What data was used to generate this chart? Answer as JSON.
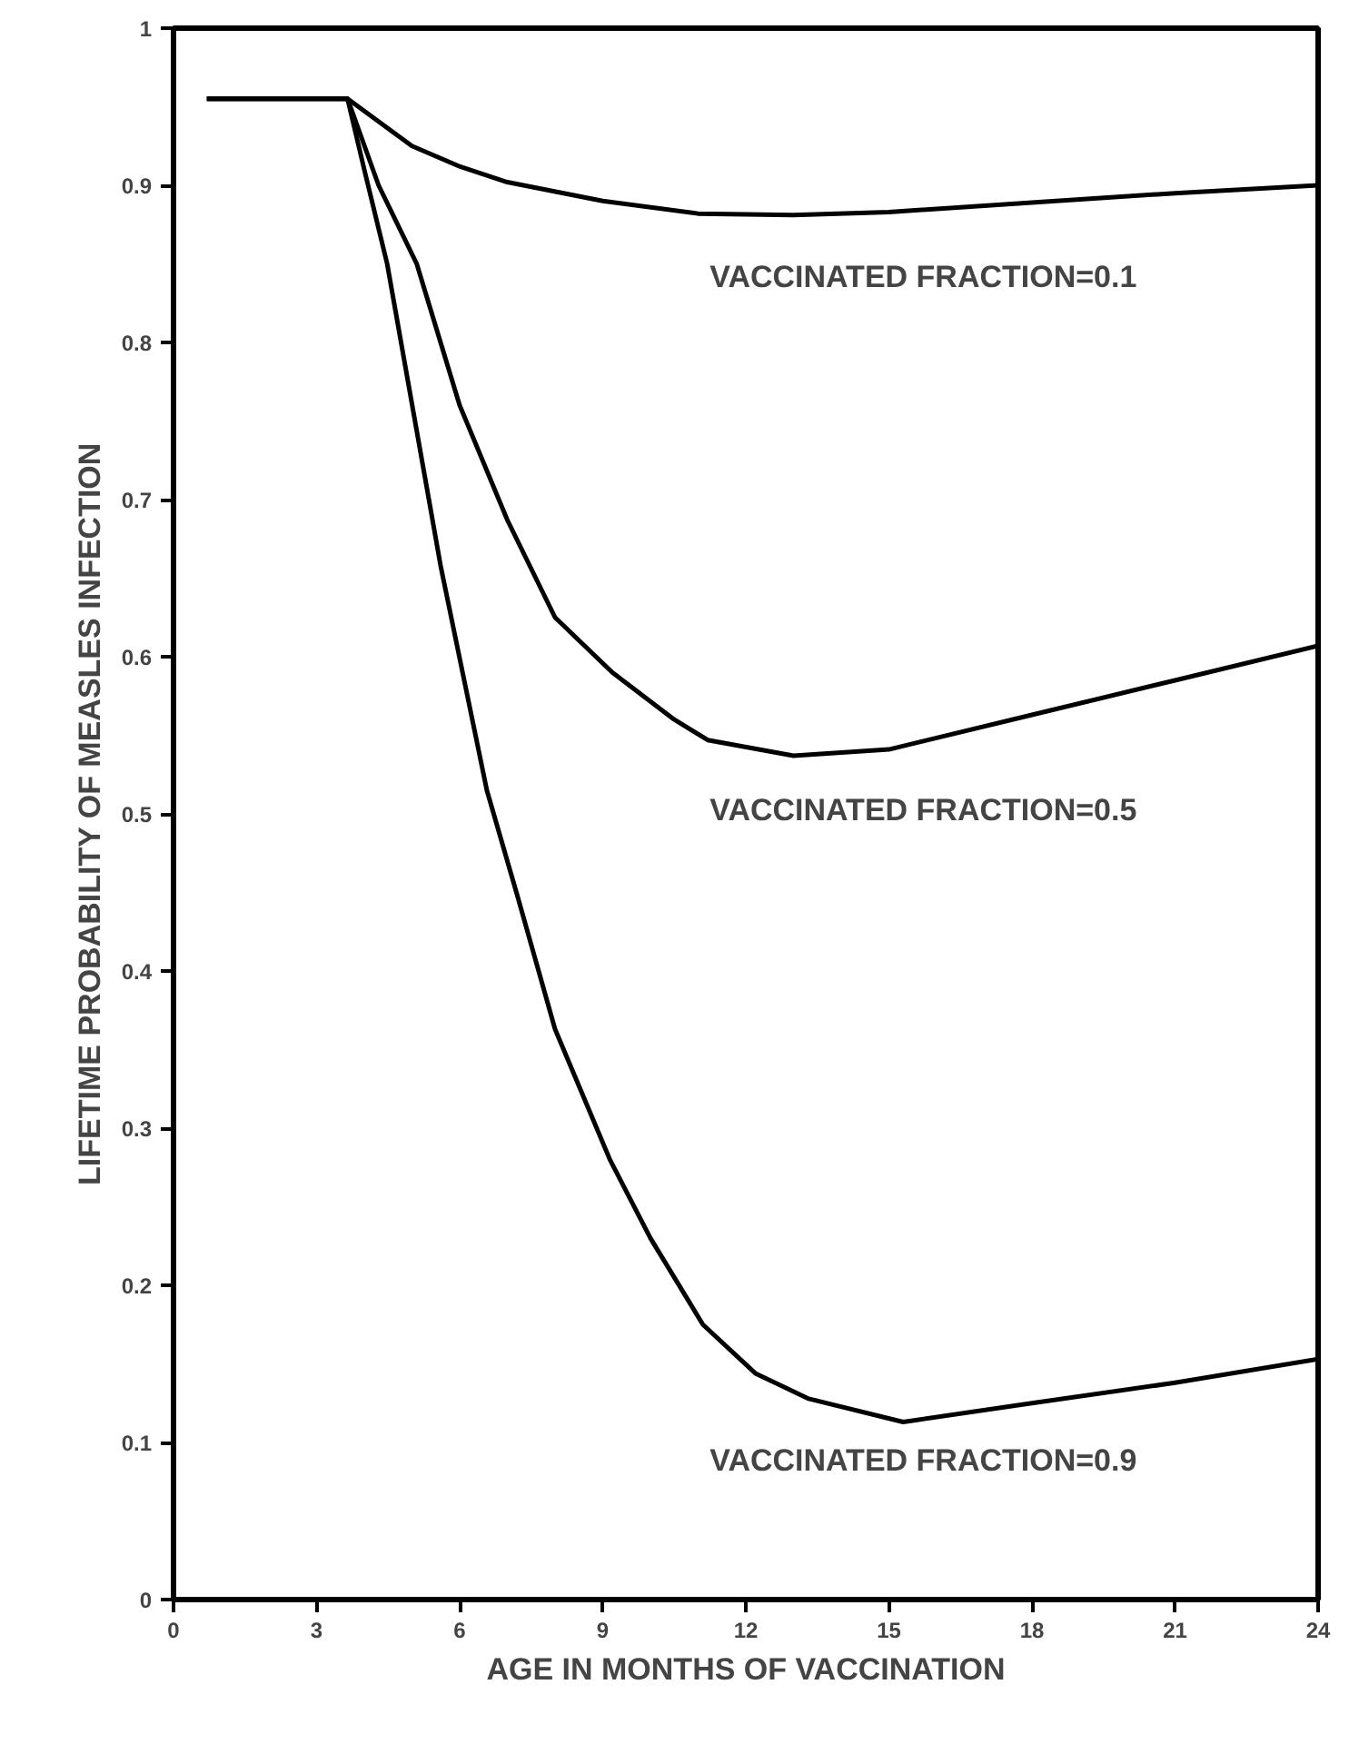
{
  "chart_data": {
    "type": "line",
    "xlabel": "AGE IN MONTHS OF VACCINATION",
    "ylabel": "LIFETIME PROBABILITY OF MEASLES INFECTION",
    "xlim": [
      0,
      24
    ],
    "xticks": [
      0,
      3,
      6,
      9,
      12,
      15,
      18,
      21,
      24
    ],
    "ylim": [
      0,
      1
    ],
    "yticks": [
      0,
      0.1,
      0.2,
      0.3,
      0.4,
      0.5,
      0.6,
      0.7,
      0.8,
      0.9,
      1
    ],
    "grid": false,
    "legend": false,
    "marker": "none",
    "line_style": "solid",
    "series": [
      {
        "name": "VACCINATED FRACTION=0.1",
        "color": "#000000",
        "x": [
          0.7,
          3.65,
          5,
          6,
          7,
          9,
          11,
          13,
          15,
          18,
          21,
          24
        ],
        "values": [
          0.955,
          0.955,
          0.925,
          0.912,
          0.902,
          0.89,
          0.882,
          0.881,
          0.883,
          0.889,
          0.895,
          0.9
        ]
      },
      {
        "name": "VACCINATED FRACTION=0.5",
        "color": "#000000",
        "x": [
          0.7,
          3.65,
          4.3,
          5.1,
          6,
          7,
          8,
          9.2,
          10.5,
          11.2,
          13,
          15,
          18,
          21,
          24
        ],
        "values": [
          0.955,
          0.955,
          0.9,
          0.85,
          0.76,
          0.687,
          0.625,
          0.59,
          0.56,
          0.547,
          0.537,
          0.541,
          0.563,
          0.585,
          0.607
        ]
      },
      {
        "name": "VACCINATED FRACTION=0.9",
        "color": "#000000",
        "x": [
          0.7,
          3.65,
          4.0,
          4.48,
          5.6,
          6.57,
          7.2,
          8,
          9.15,
          10,
          11.1,
          12.2,
          13.3,
          15.3,
          18,
          21,
          24
        ],
        "values": [
          0.955,
          0.955,
          0.91,
          0.85,
          0.658,
          0.515,
          0.449,
          0.363,
          0.28,
          0.23,
          0.175,
          0.144,
          0.128,
          0.113,
          0.125,
          0.138,
          0.153
        ]
      }
    ]
  }
}
